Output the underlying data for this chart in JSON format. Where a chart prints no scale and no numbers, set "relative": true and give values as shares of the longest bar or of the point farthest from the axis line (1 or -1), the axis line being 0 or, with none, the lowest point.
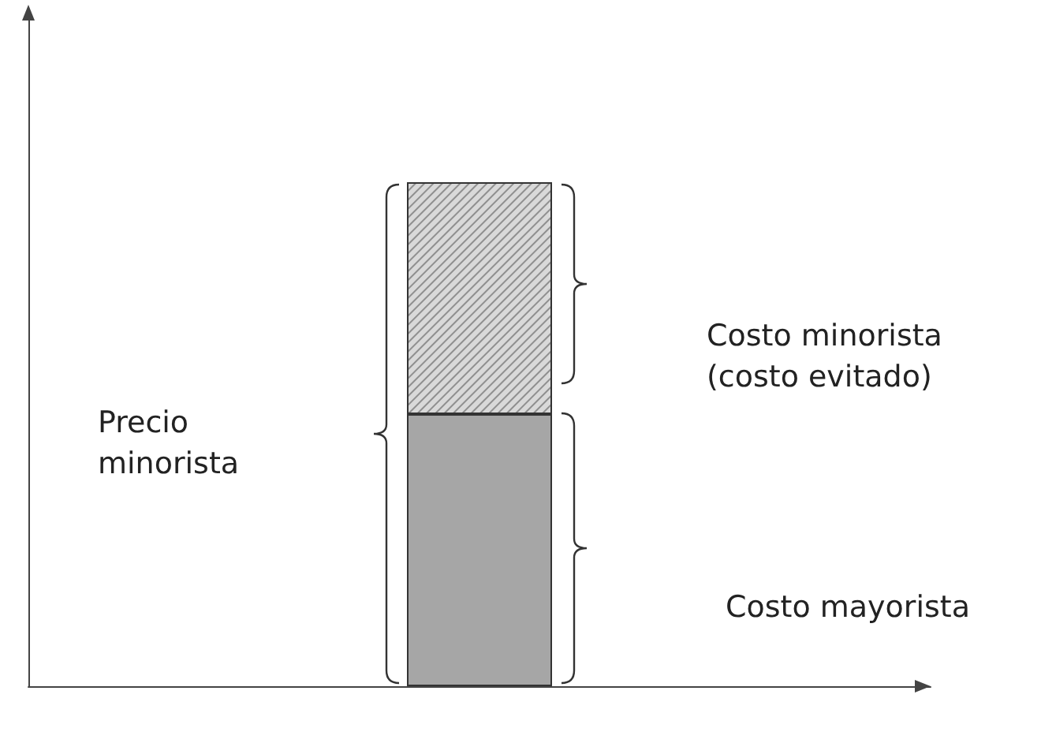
{
  "chart_data": {
    "type": "bar",
    "stacked": true,
    "relative": true,
    "categories": [
      null
    ],
    "series": [
      {
        "color": "#a6a6a6",
        "values": [
          0.54
        ]
      },
      {
        "color": "#d9d9d9",
        "values": [
          0.46
        ]
      }
    ],
    "annotations": [
      "Precio\nminorista",
      "Costo minorista\n(costo evitado)",
      "Costo mayorista"
    ]
  }
}
